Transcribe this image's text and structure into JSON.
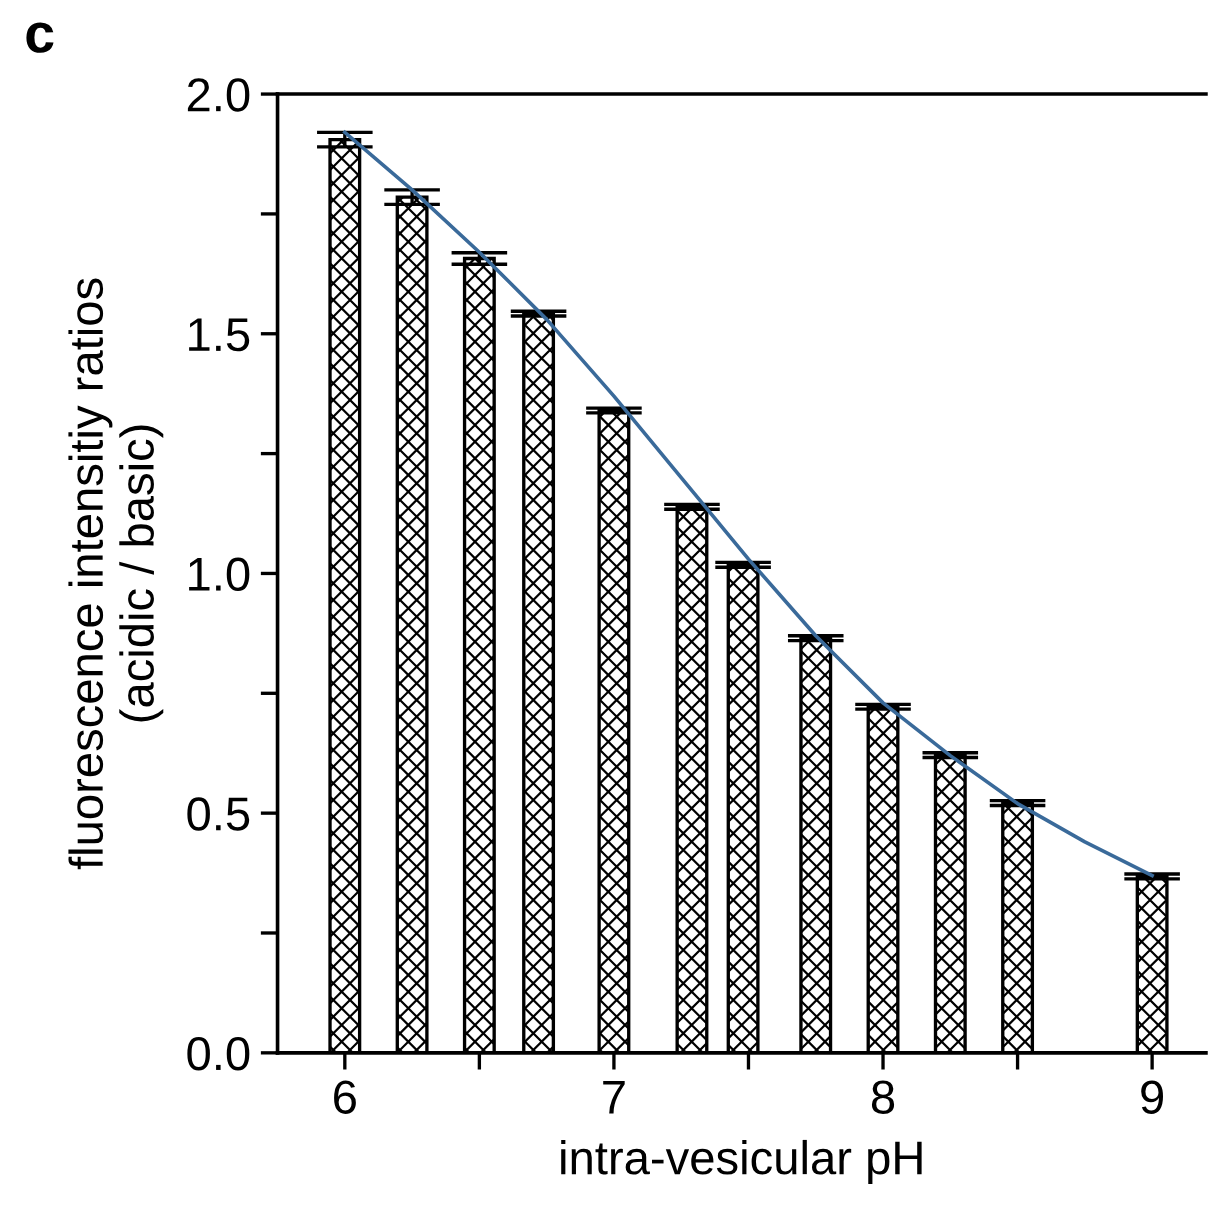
{
  "chart_data": {
    "type": "bar",
    "xlabel": "intra-vesicular pH",
    "ylabel": "fluorescence intensitiy ratios\n(acidic / basic)",
    "annotations": [
      "c"
    ],
    "x": [
      6,
      6.25,
      6.5,
      6.72,
      7,
      7.29,
      7.48,
      7.75,
      8,
      8.25,
      8.5,
      9
    ],
    "series": [
      {
        "color": "#000000",
        "values": [
          1.905,
          1.785,
          1.657,
          1.542,
          1.34,
          1.139,
          1.018,
          0.865,
          0.722,
          0.621,
          0.521,
          0.368
        ],
        "errors": [
          0.015,
          0.015,
          0.012,
          0.005,
          0.005,
          0.005,
          0.005,
          0.005,
          0.005,
          0.005,
          0.005,
          0.005
        ]
      },
      {
        "type": "line",
        "color": "#3a6a9a",
        "x": [
          6,
          6.25,
          6.5,
          6.75,
          7,
          7.25,
          7.5,
          7.75,
          8,
          8.25,
          8.5,
          8.75,
          9
        ],
        "values": [
          1.92,
          1.8,
          1.67,
          1.53,
          1.37,
          1.2,
          1.03,
          0.87,
          0.73,
          0.62,
          0.52,
          0.44,
          0.37
        ]
      }
    ],
    "xlim": [
      5.75,
      9.2
    ],
    "xticks": [
      6,
      {
        "value": 6.5,
        "label": null
      },
      7,
      {
        "value": 7.5,
        "label": null
      },
      8,
      {
        "value": 8.5,
        "label": null
      },
      9
    ],
    "ylim": [
      0,
      2.0
    ],
    "yticks": [
      {
        "value": 0,
        "label": "0.0"
      },
      {
        "value": 0.25,
        "label": null
      },
      0.5,
      {
        "value": 0.75,
        "label": null
      },
      {
        "value": 1.0,
        "label": "1.0"
      },
      {
        "value": 1.25,
        "label": null
      },
      1.5,
      {
        "value": 1.75,
        "label": null
      },
      {
        "value": 2.0,
        "label": "2.0"
      }
    ],
    "grid": false,
    "legend": false
  }
}
